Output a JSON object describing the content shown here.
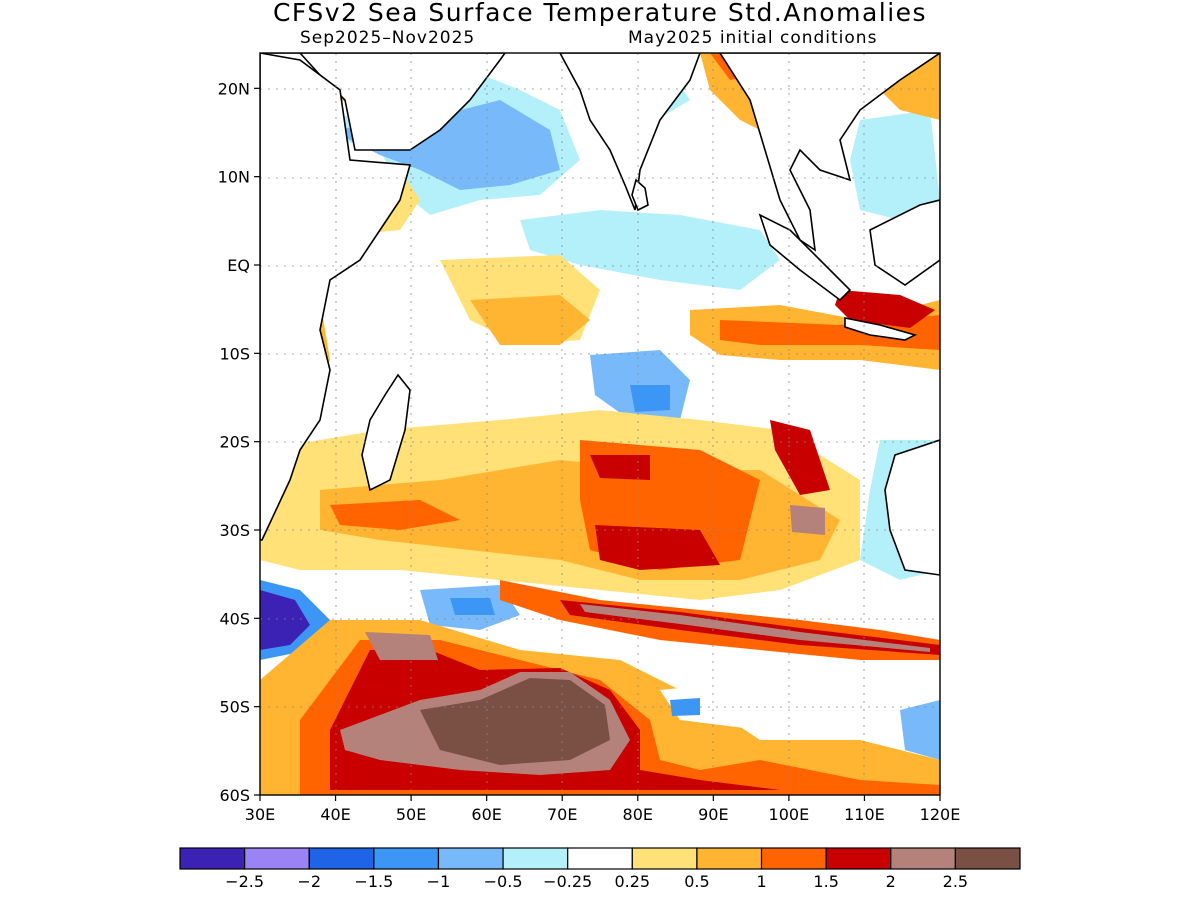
{
  "title": "CFSv2 Sea Surface Temperature Std.Anomalies",
  "subtitle_left": "Sep2025–Nov2025",
  "subtitle_right": "May2025 initial conditions",
  "map": {
    "lon_range": [
      30,
      120
    ],
    "lat_range": [
      -60,
      24
    ],
    "lat_ticks": [
      {
        "v": 20,
        "label": "20N"
      },
      {
        "v": 10,
        "label": "10N"
      },
      {
        "v": 0,
        "label": "EQ"
      },
      {
        "v": -10,
        "label": "10S"
      },
      {
        "v": -20,
        "label": "20S"
      },
      {
        "v": -30,
        "label": "30S"
      },
      {
        "v": -40,
        "label": "40S"
      },
      {
        "v": -50,
        "label": "50S"
      },
      {
        "v": -60,
        "label": "60S"
      }
    ],
    "lon_ticks": [
      {
        "v": 30,
        "label": "30E"
      },
      {
        "v": 40,
        "label": "40E"
      },
      {
        "v": 50,
        "label": "50E"
      },
      {
        "v": 60,
        "label": "60E"
      },
      {
        "v": 70,
        "label": "70E"
      },
      {
        "v": 80,
        "label": "80E"
      },
      {
        "v": 90,
        "label": "90E"
      },
      {
        "v": 100,
        "label": "100E"
      },
      {
        "v": 110,
        "label": "110E"
      },
      {
        "v": 120,
        "label": "120E"
      }
    ]
  },
  "colorbar": {
    "colors": [
      "#3b22b4",
      "#9b82f5",
      "#1f64e6",
      "#3c96f5",
      "#78b9fa",
      "#b4f0fa",
      "#ffffff",
      "#ffe178",
      "#ffb432",
      "#ff6400",
      "#c80000",
      "#b4827a",
      "#7a5045"
    ],
    "labels": [
      "−2.5",
      "−2",
      "−1.5",
      "−1",
      "−0.5",
      "−0.25",
      "0.25",
      "0.5",
      "1",
      "1.5",
      "2",
      "2.5"
    ]
  }
}
